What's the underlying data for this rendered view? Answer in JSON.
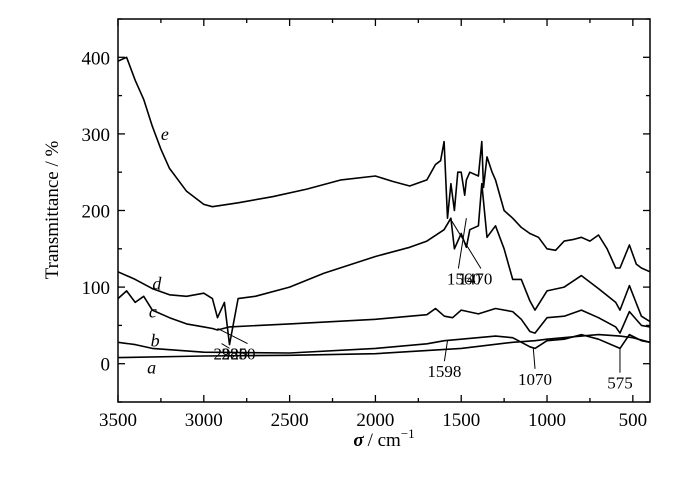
{
  "chart_data": {
    "type": "line",
    "xlabel_symbol": "σ",
    "xlabel_unit": "/ cm",
    "xlabel_sup": "−1",
    "ylabel": "Transmittance / %",
    "xlim": [
      3500,
      400
    ],
    "ylim": [
      -50,
      450
    ],
    "x_ticks": [
      3500,
      3000,
      2500,
      2000,
      1500,
      1000,
      500
    ],
    "y_ticks": [
      0,
      100,
      200,
      300,
      400
    ],
    "grid": false,
    "series": [
      {
        "name": "a",
        "x": [
          3500,
          3000,
          2500,
          2000,
          1500,
          1200,
          1070,
          1000,
          800,
          700,
          575,
          500,
          400
        ],
        "y": [
          8,
          10,
          11,
          13,
          20,
          28,
          30,
          32,
          36,
          38,
          36,
          34,
          28
        ]
      },
      {
        "name": "b",
        "x": [
          3500,
          3400,
          3300,
          3000,
          2500,
          2000,
          1700,
          1598,
          1500,
          1300,
          1200,
          1100,
          1070,
          1000,
          900,
          800,
          700,
          575,
          520,
          450,
          400
        ],
        "y": [
          28,
          25,
          20,
          15,
          14,
          20,
          26,
          30,
          32,
          36,
          34,
          22,
          20,
          30,
          32,
          38,
          32,
          20,
          38,
          30,
          28
        ]
      },
      {
        "name": "c",
        "x": [
          3500,
          3450,
          3400,
          3350,
          3300,
          3200,
          3100,
          3000,
          2950,
          2920,
          2850,
          2500,
          2000,
          1700,
          1650,
          1598,
          1550,
          1500,
          1400,
          1300,
          1200,
          1150,
          1100,
          1070,
          1000,
          900,
          800,
          700,
          600,
          575,
          520,
          450,
          400
        ],
        "y": [
          85,
          95,
          80,
          88,
          70,
          60,
          52,
          48,
          46,
          44,
          48,
          52,
          58,
          64,
          72,
          62,
          60,
          70,
          65,
          72,
          68,
          58,
          42,
          40,
          60,
          62,
          70,
          60,
          48,
          40,
          68,
          50,
          48
        ]
      },
      {
        "name": "d",
        "x": [
          3500,
          3400,
          3300,
          3200,
          3100,
          3000,
          2950,
          2920,
          2880,
          2850,
          2800,
          2700,
          2500,
          2300,
          2000,
          1800,
          1700,
          1600,
          1560,
          1540,
          1500,
          1470,
          1450,
          1400,
          1380,
          1350,
          1300,
          1250,
          1200,
          1150,
          1100,
          1070,
          1000,
          900,
          800,
          700,
          600,
          575,
          520,
          450,
          400
        ],
        "y": [
          120,
          110,
          98,
          90,
          88,
          92,
          85,
          60,
          80,
          25,
          85,
          88,
          100,
          118,
          140,
          152,
          160,
          175,
          190,
          150,
          170,
          152,
          175,
          180,
          235,
          165,
          180,
          150,
          110,
          110,
          82,
          70,
          95,
          100,
          115,
          98,
          80,
          70,
          102,
          62,
          55
        ]
      },
      {
        "name": "e",
        "x": [
          3500,
          3450,
          3400,
          3350,
          3300,
          3250,
          3200,
          3100,
          3000,
          2950,
          2800,
          2600,
          2400,
          2200,
          2000,
          1900,
          1800,
          1700,
          1650,
          1620,
          1600,
          1580,
          1560,
          1540,
          1520,
          1500,
          1480,
          1470,
          1450,
          1400,
          1380,
          1370,
          1350,
          1320,
          1300,
          1250,
          1200,
          1150,
          1100,
          1050,
          1000,
          950,
          900,
          850,
          800,
          750,
          700,
          650,
          600,
          575,
          520,
          480,
          450,
          400
        ],
        "y": [
          395,
          400,
          370,
          345,
          310,
          280,
          255,
          225,
          208,
          205,
          210,
          218,
          228,
          240,
          245,
          238,
          232,
          240,
          260,
          265,
          290,
          190,
          235,
          200,
          250,
          250,
          220,
          240,
          250,
          245,
          290,
          230,
          270,
          250,
          240,
          200,
          190,
          178,
          170,
          165,
          150,
          148,
          160,
          162,
          165,
          160,
          168,
          150,
          125,
          125,
          155,
          130,
          125,
          120
        ]
      }
    ],
    "annotations": [
      "2920",
      "2850",
      "1560",
      "1470",
      "1598",
      "1070",
      "575"
    ]
  }
}
